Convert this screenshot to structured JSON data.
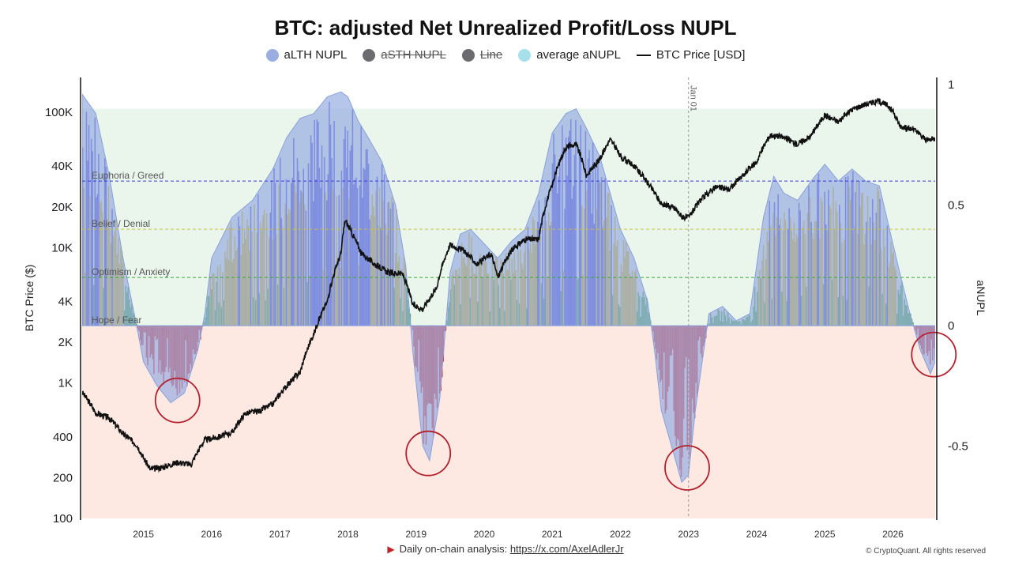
{
  "colors": {
    "lth": "#9aaee2",
    "sth": "#6b6b70",
    "line": "#6b6b70",
    "average": "#a6e0ea",
    "price": "#111111",
    "euphoria": "#3b3bd6",
    "belief": "#d8b30e",
    "optimism": "#3aa832",
    "capitulation": "#d8261f",
    "zone_green_bg": "#eaf6ec",
    "zone_red_bg": "#fde8e2",
    "circle": "#b3202c"
  },
  "legend": [
    {
      "label": "aLTH NUPL",
      "color": "#9aaee2",
      "struck": false,
      "icon": "dot"
    },
    {
      "label": "aSTH NUPL",
      "color": "#6b6b70",
      "struck": true,
      "icon": "dot"
    },
    {
      "label": "Line",
      "color": "#6b6b70",
      "struck": true,
      "icon": "dot"
    },
    {
      "label": "average aNUPL",
      "color": "#a6e0ea",
      "struck": false,
      "icon": "dot"
    },
    {
      "label": "BTC Price [USD]",
      "color": "#111111",
      "struck": false,
      "icon": "line"
    }
  ],
  "footer": {
    "prefix": "Daily on-chain analysis: ",
    "link": "https://x.com/AxelAdlerJr"
  },
  "copyright": "© CryptoQuant. All rights reserved",
  "chart_data": {
    "type": "area",
    "title": "BTC: adjusted Net Unrealized Profit/Loss NUPL",
    "y_left_label": "BTC Price ($)",
    "y_right_label": "aNUPL",
    "y_left_scale": "log",
    "y_left_ticks": [
      "100",
      "200",
      "400",
      "1K",
      "2K",
      "4K",
      "10K",
      "20K",
      "40K",
      "100K"
    ],
    "y_left_tick_values": [
      100,
      200,
      400,
      1000,
      2000,
      4000,
      10000,
      20000,
      40000,
      100000
    ],
    "y_right_ticks": [
      "1",
      "0.5",
      "0",
      "-0.5"
    ],
    "y_right_tick_values": [
      1,
      0.5,
      0,
      -0.5
    ],
    "y_right_range": [
      -0.8,
      1.03
    ],
    "x_range": [
      2014.1,
      2026.62
    ],
    "x_ticks": [
      "2015",
      "2016",
      "2017",
      "2018",
      "2019",
      "2020",
      "2021",
      "2022",
      "2023",
      "2024",
      "2025",
      "2026"
    ],
    "zones": [
      {
        "label": "Euphoria / Greed",
        "value": 0.6,
        "color": "#3b3bd6"
      },
      {
        "label": "Belief / Denial",
        "value": 0.4,
        "color": "#c8c040"
      },
      {
        "label": "Optimism / Anxiety",
        "value": 0.2,
        "color": "#3aa832"
      },
      {
        "label": "Hope / Fear",
        "value": 0.0,
        "color": "#888888"
      }
    ],
    "zone_fill_top": 0.9,
    "vertical_marker": {
      "label": "Jan 01",
      "x": 2023.0
    },
    "circled_lows": [
      {
        "x": 2015.5,
        "y": -0.31
      },
      {
        "x": 2019.18,
        "y": -0.53
      },
      {
        "x": 2022.98,
        "y": -0.59
      },
      {
        "x": 2026.6,
        "y": -0.12
      }
    ],
    "series": [
      {
        "name": "aLTH NUPL",
        "x": [
          2014.1,
          2014.3,
          2014.5,
          2014.7,
          2014.9,
          2015.0,
          2015.2,
          2015.4,
          2015.6,
          2015.8,
          2015.9,
          2016.0,
          2016.3,
          2016.6,
          2016.9,
          2017.1,
          2017.3,
          2017.5,
          2017.7,
          2017.9,
          2018.0,
          2018.15,
          2018.3,
          2018.5,
          2018.7,
          2018.85,
          2018.95,
          2019.1,
          2019.2,
          2019.35,
          2019.5,
          2019.65,
          2019.8,
          2020.0,
          2020.2,
          2020.4,
          2020.6,
          2020.8,
          2021.0,
          2021.2,
          2021.35,
          2021.5,
          2021.7,
          2021.85,
          2022.0,
          2022.2,
          2022.4,
          2022.5,
          2022.6,
          2022.8,
          2022.9,
          2023.0,
          2023.1,
          2023.3,
          2023.5,
          2023.7,
          2023.9,
          2024.1,
          2024.25,
          2024.4,
          2024.6,
          2024.8,
          2025.0,
          2025.2,
          2025.4,
          2025.6,
          2025.8,
          2025.95,
          2026.1,
          2026.25,
          2026.4,
          2026.55,
          2026.62
        ],
        "values": [
          0.96,
          0.88,
          0.62,
          0.28,
          0.0,
          -0.15,
          -0.25,
          -0.32,
          -0.28,
          -0.1,
          0.05,
          0.28,
          0.45,
          0.52,
          0.65,
          0.78,
          0.86,
          0.88,
          0.95,
          0.97,
          0.95,
          0.85,
          0.78,
          0.68,
          0.5,
          0.25,
          -0.1,
          -0.5,
          -0.56,
          -0.3,
          0.22,
          0.38,
          0.4,
          0.34,
          0.28,
          0.35,
          0.4,
          0.55,
          0.8,
          0.88,
          0.9,
          0.82,
          0.7,
          0.55,
          0.4,
          0.28,
          0.1,
          -0.1,
          -0.35,
          -0.55,
          -0.65,
          -0.62,
          -0.35,
          0.05,
          0.08,
          0.02,
          0.05,
          0.45,
          0.62,
          0.55,
          0.52,
          0.6,
          0.67,
          0.6,
          0.65,
          0.6,
          0.58,
          0.4,
          0.22,
          0.05,
          -0.1,
          -0.2,
          -0.15
        ]
      },
      {
        "name": "BTC Price [USD]",
        "x": [
          2014.1,
          2014.3,
          2014.5,
          2014.7,
          2014.9,
          2015.0,
          2015.1,
          2015.3,
          2015.5,
          2015.7,
          2015.9,
          2016.1,
          2016.3,
          2016.5,
          2016.7,
          2016.9,
          2017.1,
          2017.3,
          2017.5,
          2017.7,
          2017.9,
          2017.96,
          2018.05,
          2018.2,
          2018.4,
          2018.6,
          2018.8,
          2018.95,
          2019.1,
          2019.3,
          2019.5,
          2019.7,
          2019.9,
          2020.1,
          2020.2,
          2020.4,
          2020.6,
          2020.8,
          2021.0,
          2021.2,
          2021.35,
          2021.5,
          2021.7,
          2021.85,
          2022.0,
          2022.2,
          2022.4,
          2022.6,
          2022.8,
          2022.9,
          2023.0,
          2023.2,
          2023.4,
          2023.6,
          2023.8,
          2024.0,
          2024.2,
          2024.4,
          2024.6,
          2024.8,
          2025.0,
          2025.2,
          2025.4,
          2025.6,
          2025.8,
          2025.95,
          2026.1,
          2026.2,
          2026.3,
          2026.4,
          2026.5,
          2026.62
        ],
        "values": [
          850,
          600,
          550,
          420,
          350,
          280,
          230,
          240,
          260,
          250,
          380,
          400,
          430,
          600,
          620,
          700,
          950,
          1200,
          2300,
          4000,
          9000,
          16000,
          13000,
          9000,
          7500,
          6500,
          6400,
          3800,
          3500,
          5000,
          10500,
          9500,
          7500,
          9000,
          6000,
          9500,
          11500,
          11500,
          29000,
          55000,
          58000,
          34000,
          45000,
          63000,
          47000,
          40000,
          30000,
          21000,
          19500,
          17000,
          16600,
          23000,
          28000,
          27000,
          34000,
          43000,
          68000,
          65000,
          58000,
          67000,
          95000,
          85000,
          105000,
          115000,
          120000,
          110000,
          80000,
          76000,
          75000,
          68000,
          62000,
          64000
        ]
      }
    ]
  }
}
